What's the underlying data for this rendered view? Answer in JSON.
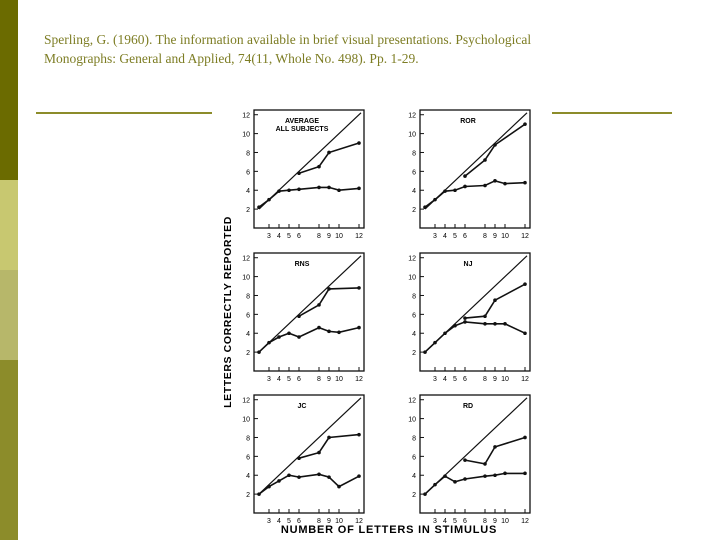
{
  "slide": {
    "citation_line1": "Sperling, G. (1960). The information available in brief visual presentations. Psychological",
    "citation_line2": "Monographs: General and Applied, 74(11, Whole No. 498). Pp. 1-29.",
    "accent_color": "#8c8c2a",
    "sidebar_colors": [
      "#6b6b00",
      "#c8c870",
      "#b7b76a",
      "#8c8c2a"
    ]
  },
  "figure": {
    "ylabel": "LETTERS CORRECTLY REPORTED",
    "xlabel": "NUMBER OF LETTERS IN STIMULUS"
  },
  "chart_data": [
    {
      "type": "line",
      "title": "AVERAGE\nALL SUBJECTS",
      "xlim": [
        1.5,
        12.5
      ],
      "ylim": [
        0,
        12.5
      ],
      "xticks": [
        3,
        4,
        5,
        6,
        8,
        9,
        10,
        12
      ],
      "yticks": [
        2,
        4,
        6,
        8,
        10,
        12
      ],
      "diagonal": true,
      "series": [
        {
          "marker": "dot",
          "x": [
            2,
            3,
            4,
            5,
            6,
            8,
            9,
            10,
            12
          ],
          "y": [
            2.2,
            3.0,
            3.9,
            4.0,
            4.1,
            4.3,
            4.3,
            4.0,
            4.2
          ]
        },
        {
          "marker": "dot",
          "x": [
            6,
            8,
            9,
            12
          ],
          "y": [
            5.8,
            6.5,
            8.0,
            9.0
          ]
        }
      ]
    },
    {
      "type": "line",
      "title": "ROR",
      "xlim": [
        1.5,
        12.5
      ],
      "ylim": [
        0,
        12.5
      ],
      "xticks": [
        3,
        4,
        5,
        6,
        8,
        9,
        10,
        12
      ],
      "yticks": [
        2,
        4,
        6,
        8,
        10,
        12
      ],
      "diagonal": true,
      "series": [
        {
          "marker": "dot",
          "x": [
            2,
            3,
            4,
            5,
            6,
            8,
            9,
            10,
            12
          ],
          "y": [
            2.2,
            3.0,
            3.9,
            4.0,
            4.4,
            4.5,
            5.0,
            4.7,
            4.8
          ]
        },
        {
          "marker": "dot",
          "x": [
            6,
            8,
            9,
            12
          ],
          "y": [
            5.5,
            7.2,
            8.8,
            11.0
          ]
        }
      ]
    },
    {
      "type": "line",
      "title": "RNS",
      "xlim": [
        1.5,
        12.5
      ],
      "ylim": [
        0,
        12.5
      ],
      "xticks": [
        3,
        4,
        5,
        6,
        8,
        9,
        10,
        12
      ],
      "yticks": [
        2,
        4,
        6,
        8,
        10,
        12
      ],
      "diagonal": true,
      "series": [
        {
          "marker": "dot",
          "x": [
            2,
            3,
            4,
            5,
            6,
            8,
            9,
            10,
            12
          ],
          "y": [
            2.0,
            3.0,
            3.6,
            4.0,
            3.6,
            4.6,
            4.2,
            4.1,
            4.6
          ]
        },
        {
          "marker": "dot",
          "x": [
            6,
            8,
            9,
            12
          ],
          "y": [
            5.8,
            7.0,
            8.7,
            8.8
          ]
        }
      ]
    },
    {
      "type": "line",
      "title": "NJ",
      "xlim": [
        1.5,
        12.5
      ],
      "ylim": [
        0,
        12.5
      ],
      "xticks": [
        3,
        4,
        5,
        6,
        8,
        9,
        10,
        12
      ],
      "yticks": [
        2,
        4,
        6,
        8,
        10,
        12
      ],
      "diagonal": true,
      "series": [
        {
          "marker": "dot",
          "x": [
            2,
            3,
            4,
            5,
            6,
            8,
            9,
            10,
            12
          ],
          "y": [
            2.0,
            3.0,
            4.0,
            4.8,
            5.2,
            5.0,
            5.0,
            5.0,
            4.0
          ]
        },
        {
          "marker": "dot",
          "x": [
            6,
            8,
            9,
            12
          ],
          "y": [
            5.6,
            5.8,
            7.5,
            9.2
          ]
        }
      ]
    },
    {
      "type": "line",
      "title": "JC",
      "xlim": [
        1.5,
        12.5
      ],
      "ylim": [
        0,
        12.5
      ],
      "xticks": [
        3,
        4,
        5,
        6,
        8,
        9,
        10,
        12
      ],
      "yticks": [
        2,
        4,
        6,
        8,
        10,
        12
      ],
      "diagonal": true,
      "series": [
        {
          "marker": "dot",
          "x": [
            2,
            3,
            4,
            5,
            6,
            8,
            9,
            10,
            12
          ],
          "y": [
            2.0,
            2.8,
            3.4,
            4.0,
            3.8,
            4.1,
            3.8,
            2.8,
            3.9
          ]
        },
        {
          "marker": "dot",
          "x": [
            6,
            8,
            9,
            12
          ],
          "y": [
            5.8,
            6.4,
            8.0,
            8.3
          ]
        }
      ]
    },
    {
      "type": "line",
      "title": "RD",
      "xlim": [
        1.5,
        12.5
      ],
      "ylim": [
        0,
        12.5
      ],
      "xticks": [
        3,
        4,
        5,
        6,
        8,
        9,
        10,
        12
      ],
      "yticks": [
        2,
        4,
        6,
        8,
        10,
        12
      ],
      "diagonal": true,
      "series": [
        {
          "marker": "dot",
          "x": [
            2,
            3,
            4,
            5,
            6,
            8,
            9,
            10,
            12
          ],
          "y": [
            2.0,
            3.0,
            3.9,
            3.3,
            3.6,
            3.9,
            4.0,
            4.2,
            4.2
          ]
        },
        {
          "marker": "dot",
          "x": [
            6,
            8,
            9,
            12
          ],
          "y": [
            5.6,
            5.2,
            7.0,
            8.0
          ]
        }
      ]
    }
  ]
}
